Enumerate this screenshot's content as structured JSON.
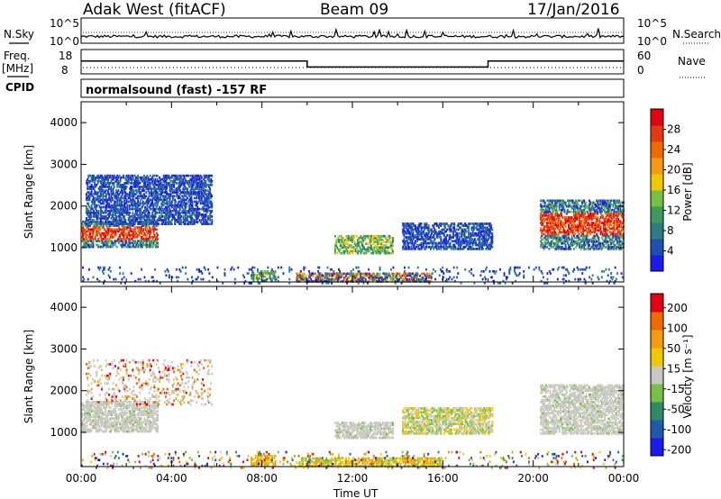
{
  "header": {
    "station": "Adak West (fitACF)",
    "beam": "Beam 09",
    "date": "17/Jan/2016"
  },
  "side_labels": {
    "nsky": "N.Sky",
    "nsearch": "N.Search",
    "freq": "Freq.",
    "freq_unit": "[MHz]",
    "nave": "Nave",
    "cpid": "CPID"
  },
  "strips": {
    "noise_left_ticks": [
      "10^5",
      "10^0"
    ],
    "noise_right_ticks": [
      "10^5",
      "10^0"
    ],
    "freq_left_ticks": [
      "18",
      "8"
    ],
    "nave_right_ticks": [
      "60",
      "0"
    ],
    "cpid_text": "normalsound (fast) -157 RF",
    "freq_trace": [
      {
        "t": 0,
        "v": 13.6
      },
      {
        "t": 10,
        "v": 13.6
      },
      {
        "t": 10,
        "v": 10.3
      },
      {
        "t": 18,
        "v": 10.3
      },
      {
        "t": 18,
        "v": 13.6
      },
      {
        "t": 24,
        "v": 13.6
      }
    ]
  },
  "chart_data": [
    {
      "type": "heatmap",
      "panel": "power",
      "ylabel": "Slant Range [km]",
      "xlabel": "",
      "ylim": [
        180,
        4500
      ],
      "y_ticks": [
        "1000",
        "2000",
        "3000",
        "4000"
      ],
      "colorbar": {
        "label": "Power [dB]",
        "ticks": [
          "4",
          "8",
          "12",
          "16",
          "20",
          "24",
          "28"
        ],
        "colors": [
          "#1b1bf0",
          "#1f4fb0",
          "#2e7d82",
          "#3d9a5a",
          "#78c043",
          "#f0c800",
          "#f39c12",
          "#ef6b00",
          "#e33b10",
          "#e30012"
        ],
        "range": [
          0,
          32
        ]
      },
      "regions": [
        {
          "t0": 0.0,
          "t1": 3.4,
          "r0": 1050,
          "r1": 1700,
          "level": "high"
        },
        {
          "t0": 0.2,
          "t1": 5.8,
          "r0": 1600,
          "r1": 2800,
          "level": "low"
        },
        {
          "t0": 11.2,
          "t1": 13.8,
          "r0": 900,
          "r1": 1350,
          "level": "mid"
        },
        {
          "t0": 14.2,
          "t1": 18.2,
          "r0": 1000,
          "r1": 1650,
          "level": "low"
        },
        {
          "t0": 7.5,
          "t1": 8.6,
          "r0": 250,
          "r1": 500,
          "level": "mid"
        },
        {
          "t0": 9.5,
          "t1": 15.5,
          "r0": 220,
          "r1": 450,
          "level": "mixed"
        },
        {
          "t0": 20.3,
          "t1": 24.0,
          "r0": 1000,
          "r1": 2200,
          "level": "high"
        },
        {
          "t0": 0.0,
          "t1": 24.0,
          "r0": 180,
          "r1": 600,
          "level": "sparse"
        }
      ]
    },
    {
      "type": "heatmap",
      "panel": "velocity",
      "ylabel": "Slant Range [km]",
      "xlabel": "Time UT",
      "ylim": [
        180,
        4500
      ],
      "y_ticks": [
        "1000",
        "2000",
        "3000",
        "4000"
      ],
      "x_ticks": [
        "00:00",
        "04:00",
        "08:00",
        "12:00",
        "16:00",
        "20:00",
        "00:00"
      ],
      "colorbar": {
        "label": "Velocity [m s⁻¹]",
        "ticks": [
          "200",
          "100",
          "50",
          "15",
          "-15",
          "-50",
          "-100",
          "-200"
        ],
        "colors": [
          "#1b1bf0",
          "#1f5aa8",
          "#2e8a66",
          "#78c043",
          "#c8c8c0",
          "#f0c800",
          "#f39c12",
          "#ef6b00",
          "#e30012"
        ],
        "range": [
          -250,
          250
        ]
      },
      "regions": [
        {
          "t0": 0.0,
          "t1": 3.4,
          "r0": 1050,
          "r1": 1800,
          "level": "gray"
        },
        {
          "t0": 0.2,
          "t1": 5.8,
          "r0": 1700,
          "r1": 2800,
          "level": "sparse_mixed"
        },
        {
          "t0": 11.2,
          "t1": 13.8,
          "r0": 900,
          "r1": 1300,
          "level": "gray"
        },
        {
          "t0": 14.2,
          "t1": 18.2,
          "r0": 1000,
          "r1": 1650,
          "level": "mixed"
        },
        {
          "t0": 7.5,
          "t1": 8.6,
          "r0": 250,
          "r1": 500,
          "level": "yellow"
        },
        {
          "t0": 9.5,
          "t1": 16.0,
          "r0": 220,
          "r1": 450,
          "level": "yellow_green"
        },
        {
          "t0": 20.3,
          "t1": 24.0,
          "r0": 1000,
          "r1": 2200,
          "level": "gray"
        },
        {
          "t0": 0.0,
          "t1": 24.0,
          "r0": 180,
          "r1": 600,
          "level": "sparse"
        }
      ]
    }
  ]
}
